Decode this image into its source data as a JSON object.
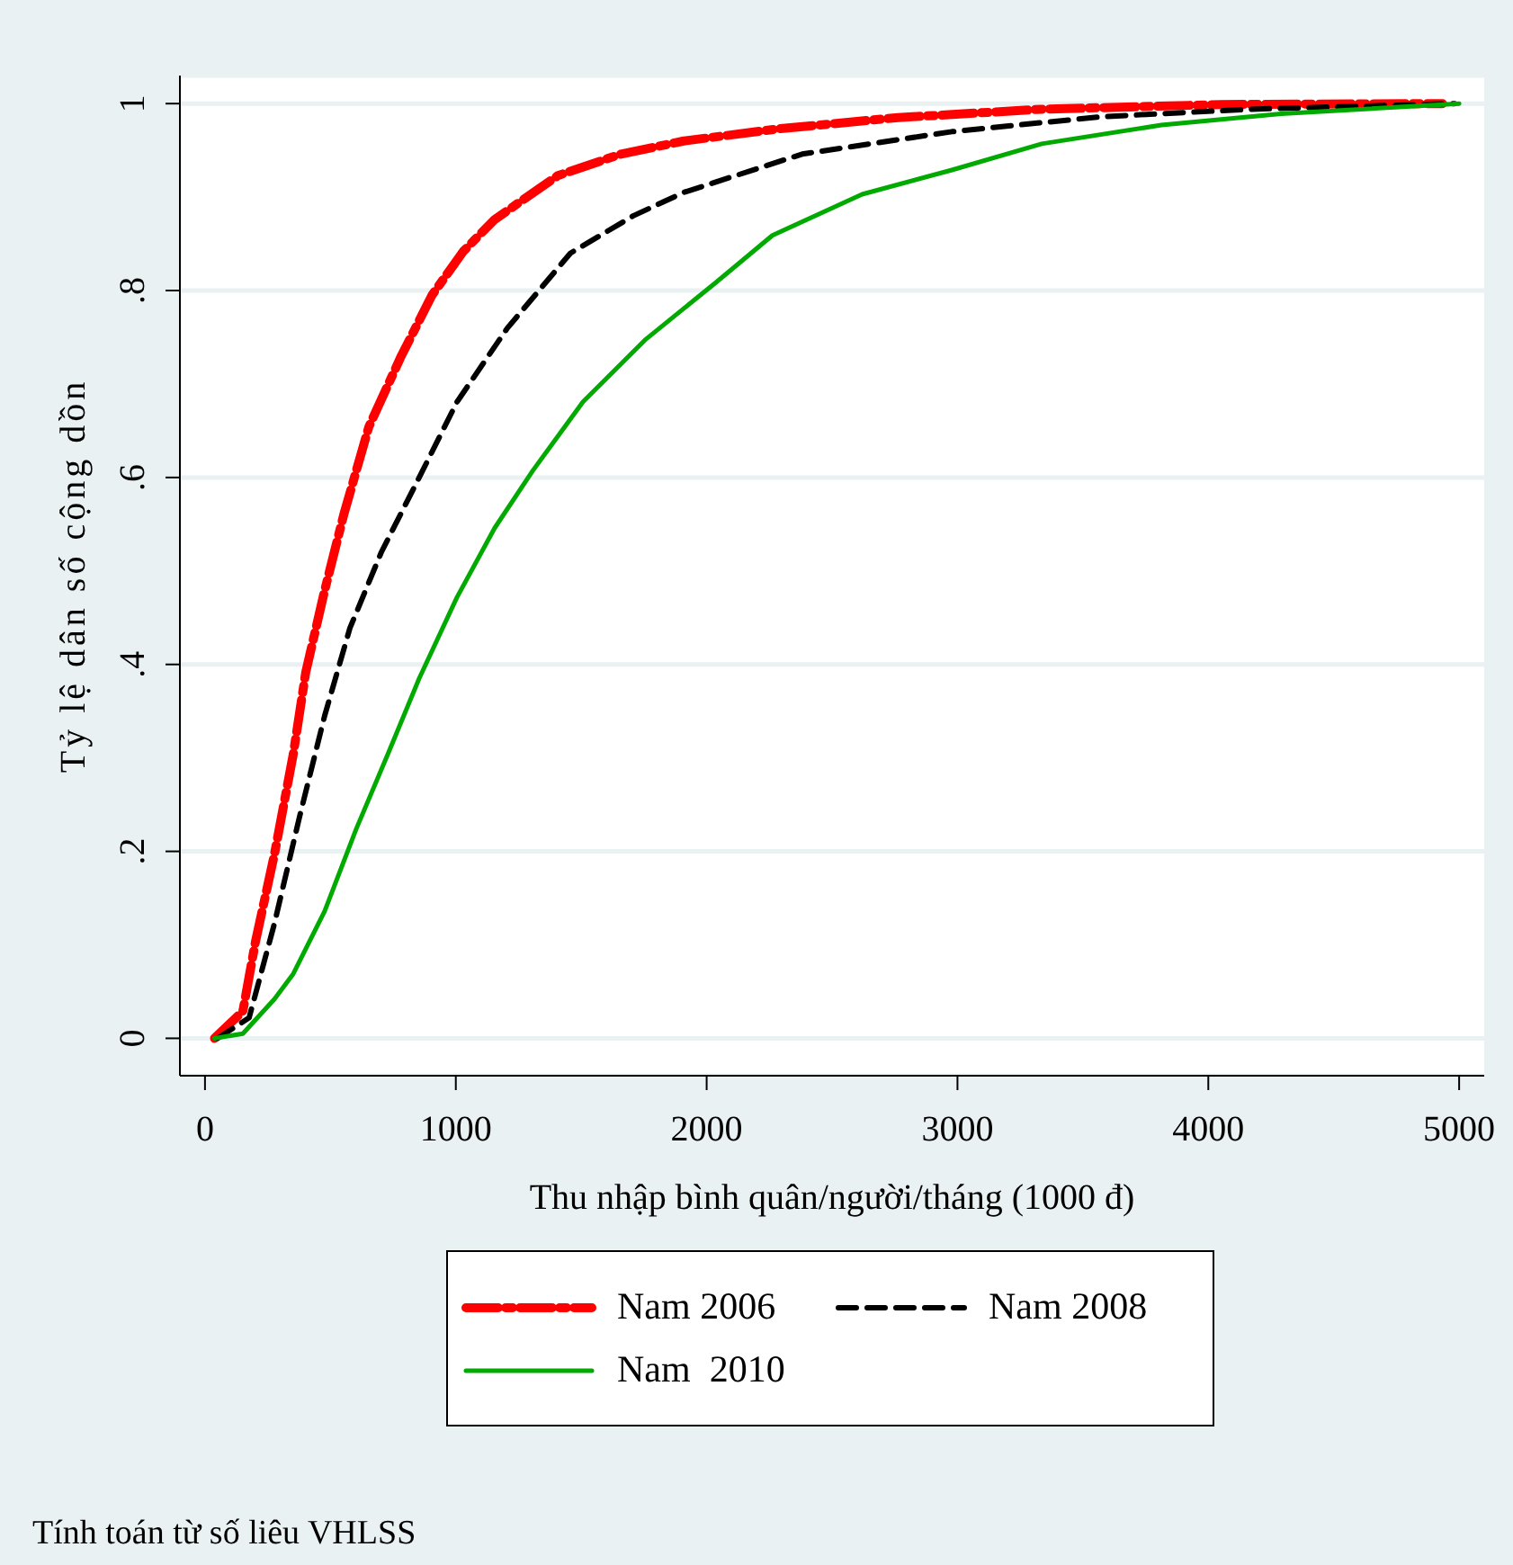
{
  "chart_data": {
    "type": "line",
    "xlabel": "Thu nhập bình quân/người/tháng (1000 đ)",
    "ylabel": "Tỷ lệ dân số cộng dồn",
    "annotations": [
      "Tính toán từ số liêu VHLSS"
    ],
    "xlim": [
      -100,
      5100
    ],
    "xticks": [
      0,
      1000,
      2000,
      3000,
      4000,
      5000
    ],
    "ylim": [
      -0.04,
      1.03
    ],
    "yticks": [
      {
        "value": 0,
        "label": "0"
      },
      {
        "value": 0.2,
        "label": ".2"
      },
      {
        "value": 0.4,
        "label": ".4"
      },
      {
        "value": 0.6,
        "label": ".6"
      },
      {
        "value": 0.8,
        "label": ".8"
      },
      {
        "value": 1,
        "label": "1"
      }
    ],
    "grid": "y",
    "legend": "bottom",
    "marker": "none",
    "series": [
      {
        "name": "Nam 2006",
        "color": "#ff0000",
        "line_style": "dashed",
        "x": [
          38,
          151,
          201,
          277,
          352,
          402,
          477,
          553,
          653,
          779,
          905,
          1030,
          1155,
          1407,
          1658,
          1909,
          2286,
          2763,
          3336,
          4051,
          4934
        ],
        "values": [
          0,
          0.029,
          0.103,
          0.197,
          0.304,
          0.392,
          0.479,
          0.56,
          0.654,
          0.728,
          0.795,
          0.842,
          0.876,
          0.923,
          0.946,
          0.96,
          0.973,
          0.985,
          0.994,
          0.999,
          1.0
        ]
      },
      {
        "name": "Nam 2008",
        "color": "#000000",
        "line_style": "dashed",
        "x": [
          50,
          176,
          277,
          377,
          477,
          578,
          703,
          854,
          1005,
          1206,
          1457,
          1708,
          1909,
          2381,
          2978,
          3574,
          4171,
          4982
        ],
        "values": [
          0,
          0.022,
          0.123,
          0.237,
          0.345,
          0.439,
          0.52,
          0.6,
          0.681,
          0.76,
          0.84,
          0.88,
          0.905,
          0.946,
          0.97,
          0.986,
          0.994,
          1.0
        ]
      },
      {
        "name": "Nam  2010",
        "color": "#00aa00",
        "line_style": "solid",
        "x": [
          38,
          151,
          277,
          352,
          477,
          603,
          729,
          854,
          1005,
          1155,
          1306,
          1507,
          1758,
          2034,
          2262,
          2620,
          2978,
          3336,
          3813,
          4290,
          5000
        ],
        "values": [
          0,
          0.005,
          0.042,
          0.069,
          0.136,
          0.224,
          0.304,
          0.385,
          0.472,
          0.546,
          0.607,
          0.681,
          0.748,
          0.808,
          0.859,
          0.903,
          0.929,
          0.957,
          0.977,
          0.989,
          1.0
        ]
      }
    ]
  }
}
